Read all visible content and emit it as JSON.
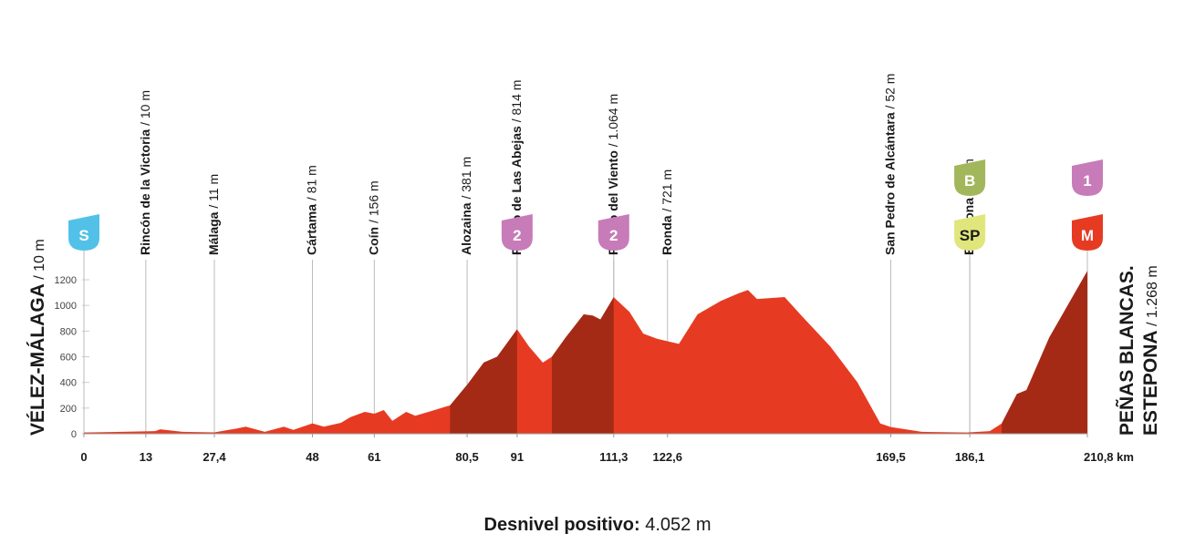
{
  "chart_data": {
    "type": "area",
    "x": [
      0,
      15,
      16,
      20.7,
      27.4,
      32,
      34,
      38,
      42,
      44,
      48,
      50.4,
      54,
      56,
      59,
      61,
      63,
      64.8,
      67.7,
      69.6,
      72.4,
      76.3,
      76.9,
      80.5,
      84,
      86.8,
      91,
      93.5,
      96.4,
      98.3,
      101.2,
      105,
      106.9,
      108.5,
      111.3,
      114.6,
      117.5,
      120.4,
      122.6,
      125,
      128.9,
      133.8,
      137.6,
      139.5,
      141.4,
      147.2,
      151,
      156.8,
      162.5,
      167.3,
      169.5,
      176,
      185.5,
      190.3,
      192.8,
      196,
      198,
      202.8,
      210.8
    ],
    "series": [
      {
        "color": "#e63b22",
        "climb_color": "#a52a16",
        "values": [
          10,
          20,
          35,
          15,
          11,
          40,
          55,
          15,
          55,
          30,
          81,
          55,
          85,
          130,
          170,
          156,
          185,
          100,
          170,
          140,
          170,
          215,
          220,
          381,
          555,
          600,
          814,
          680,
          555,
          600,
          750,
          930,
          920,
          890,
          1064,
          950,
          780,
          740,
          721,
          700,
          930,
          1035,
          1095,
          1120,
          1050,
          1065,
          910,
          680,
          400,
          80,
          52,
          15,
          10,
          20,
          80,
          310,
          340,
          750,
          1268
        ]
      }
    ],
    "climbs": [
      [
        76.9,
        91
      ],
      [
        98.3,
        111.3
      ],
      [
        192.8,
        210.8
      ]
    ],
    "xlim": [
      0,
      210.8
    ],
    "ylim": [
      0,
      1200
    ],
    "yticks": [
      0,
      200,
      400,
      600,
      800,
      1000,
      1200
    ],
    "xticks": [
      0,
      13,
      {
        "value": 27.4,
        "label": "27,4"
      },
      48,
      61,
      {
        "value": 80.5,
        "label": "80,5"
      },
      91,
      {
        "value": 111.3,
        "label": "111,3"
      },
      {
        "value": 122.6,
        "label": "122,6"
      },
      {
        "value": 169.5,
        "label": "169,5"
      },
      {
        "value": 186.1,
        "label": "186,1"
      },
      {
        "value": 210.8,
        "label": "210,8 km"
      }
    ],
    "start": {
      "name": "VÉLEZ-MÁLAGA",
      "altitude": " / 10 m"
    },
    "finish": {
      "name_lines": [
        "PEÑAS BLANCAS.",
        "ESTEPONA"
      ],
      "altitude": " / 1.268 m"
    },
    "waypoints": [
      {
        "km": 13,
        "name": "Rincón de la Victoria",
        "altitude": " / 10 m"
      },
      {
        "km": 27.4,
        "name": "Málaga",
        "altitude": " / 11 m"
      },
      {
        "km": 48,
        "name": "Cártama",
        "altitude": " / 81 m"
      },
      {
        "km": 61,
        "name": "Coín",
        "altitude": " / 156 m"
      },
      {
        "km": 80.5,
        "name": "Alozaina",
        "altitude": " / 381 m"
      },
      {
        "km": 91,
        "name": "Puerto de Las Abejas",
        "altitude": " / 814 m"
      },
      {
        "km": 111.3,
        "name": "Puerto del Viento",
        "altitude": " / 1.064 m"
      },
      {
        "km": 122.6,
        "name": "Ronda",
        "altitude": " / 721 m"
      },
      {
        "km": 169.5,
        "name": "San Pedro de Alcántara",
        "altitude": " / 52 m"
      },
      {
        "km": 186.1,
        "name": "Estepona",
        "altitude": " / 10 m"
      }
    ],
    "markers": [
      {
        "km": 0,
        "label": "S",
        "color": "#52c1e8",
        "text_color": "#ffffff"
      },
      {
        "km": 91,
        "label": "2",
        "color": "#c77bb8",
        "text_color": "#ffffff"
      },
      {
        "km": 111.3,
        "label": "2",
        "color": "#c77bb8",
        "text_color": "#ffffff"
      },
      {
        "km": 186.1,
        "label": "SP",
        "color": "#e0e67c",
        "text_color": "#1a1a1a"
      },
      {
        "km": 186.1,
        "label": "B",
        "color": "#a2b75b",
        "text_color": "#ffffff"
      },
      {
        "km": 210.8,
        "label": "M",
        "color": "#e63b22",
        "text_color": "#ffffff"
      },
      {
        "km": 210.8,
        "label": "1",
        "color": "#c77bb8",
        "text_color": "#ffffff"
      }
    ],
    "summary": {
      "label": "Desnivel positivo:",
      "value": " 4.052 m"
    }
  }
}
